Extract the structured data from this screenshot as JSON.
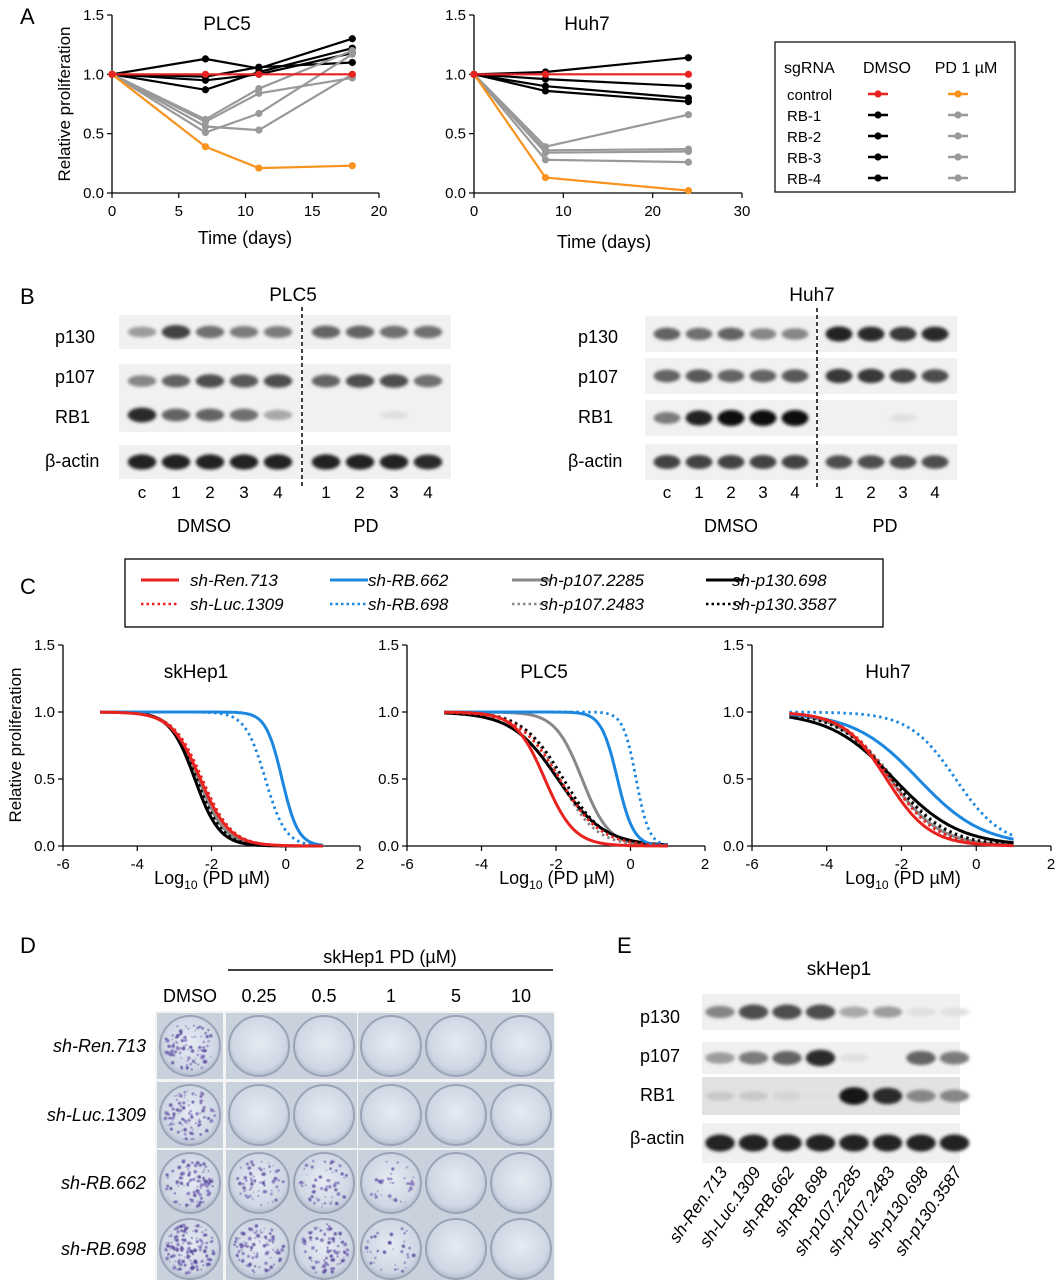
{
  "panel_letters": [
    "A",
    "B",
    "C",
    "D",
    "E"
  ],
  "chart_data": [
    {
      "panel": "A",
      "type": "line",
      "title": "PLC5",
      "xlabel": "Time (days)",
      "ylabel": "Relative proliferation",
      "xlim": [
        0,
        20
      ],
      "ylim": [
        0,
        1.5
      ],
      "xticks": [
        "0",
        "5",
        "10",
        "15",
        "20"
      ],
      "yticks": [
        "0.0",
        "0.5",
        "1.0",
        "1.5"
      ],
      "series": [
        {
          "name": "control DMSO",
          "color": "#e8231f",
          "x": [
            0,
            7,
            11,
            18
          ],
          "y": [
            1.0,
            1.0,
            1.0,
            1.0
          ]
        },
        {
          "name": "control PD 1 µM",
          "color": "#f7931e",
          "x": [
            0,
            7,
            11,
            18
          ],
          "y": [
            1.0,
            0.39,
            0.21,
            0.23
          ]
        },
        {
          "name": "RB-1 DMSO",
          "color": "#000000",
          "x": [
            0,
            7,
            11,
            18
          ],
          "y": [
            1.0,
            1.13,
            1.05,
            1.3
          ]
        },
        {
          "name": "RB-2 DMSO",
          "color": "#000000",
          "x": [
            0,
            7,
            11,
            18
          ],
          "y": [
            1.0,
            0.98,
            1.06,
            1.1
          ]
        },
        {
          "name": "RB-3 DMSO",
          "color": "#000000",
          "x": [
            0,
            7,
            11,
            18
          ],
          "y": [
            1.0,
            0.87,
            1.02,
            1.22
          ]
        },
        {
          "name": "RB-4 DMSO",
          "color": "#000000",
          "x": [
            0,
            7,
            11,
            18
          ],
          "y": [
            1.0,
            0.95,
            1.0,
            1.18
          ]
        },
        {
          "name": "RB-1 PD 1 µM",
          "color": "#999999",
          "x": [
            0,
            7,
            11,
            18
          ],
          "y": [
            1.0,
            0.62,
            0.88,
            1.2
          ]
        },
        {
          "name": "RB-2 PD 1 µM",
          "color": "#999999",
          "x": [
            0,
            7,
            11,
            18
          ],
          "y": [
            1.0,
            0.6,
            0.84,
            0.97
          ]
        },
        {
          "name": "RB-3 PD 1 µM",
          "color": "#999999",
          "x": [
            0,
            7,
            11,
            18
          ],
          "y": [
            1.0,
            0.51,
            0.67,
            1.17
          ]
        },
        {
          "name": "RB-4 PD 1 µM",
          "color": "#999999",
          "x": [
            0,
            7,
            11,
            18
          ],
          "y": [
            1.0,
            0.56,
            0.53,
            1.0
          ]
        }
      ]
    },
    {
      "panel": "A",
      "type": "line",
      "title": "Huh7",
      "xlabel": "Time (days)",
      "ylabel": "",
      "xlim": [
        0,
        30
      ],
      "ylim": [
        0,
        1.5
      ],
      "xticks": [
        "0",
        "10",
        "20",
        "30"
      ],
      "yticks": [
        "0.0",
        "0.5",
        "1.0",
        "1.5"
      ],
      "series": [
        {
          "name": "control DMSO",
          "color": "#e8231f",
          "x": [
            0,
            8,
            24
          ],
          "y": [
            1.0,
            1.0,
            1.0
          ]
        },
        {
          "name": "control PD 1 µM",
          "color": "#f7931e",
          "x": [
            0,
            8,
            24
          ],
          "y": [
            1.0,
            0.13,
            0.02
          ]
        },
        {
          "name": "RB-1 DMSO",
          "color": "#000000",
          "x": [
            0,
            8,
            24
          ],
          "y": [
            1.0,
            1.02,
            1.14
          ]
        },
        {
          "name": "RB-2 DMSO",
          "color": "#000000",
          "x": [
            0,
            8,
            24
          ],
          "y": [
            1.0,
            0.96,
            0.9
          ]
        },
        {
          "name": "RB-3 DMSO",
          "color": "#000000",
          "x": [
            0,
            8,
            24
          ],
          "y": [
            1.0,
            0.9,
            0.8
          ]
        },
        {
          "name": "RB-4 DMSO",
          "color": "#000000",
          "x": [
            0,
            8,
            24
          ],
          "y": [
            1.0,
            0.86,
            0.77
          ]
        },
        {
          "name": "RB-1 PD 1 µM",
          "color": "#999999",
          "x": [
            0,
            8,
            24
          ],
          "y": [
            1.0,
            0.39,
            0.66
          ]
        },
        {
          "name": "RB-2 PD 1 µM",
          "color": "#999999",
          "x": [
            0,
            8,
            24
          ],
          "y": [
            1.0,
            0.36,
            0.37
          ]
        },
        {
          "name": "RB-3 PD 1 µM",
          "color": "#999999",
          "x": [
            0,
            8,
            24
          ],
          "y": [
            1.0,
            0.34,
            0.35
          ]
        },
        {
          "name": "RB-4 PD 1 µM",
          "color": "#999999",
          "x": [
            0,
            8,
            24
          ],
          "y": [
            1.0,
            0.28,
            0.26
          ]
        }
      ]
    },
    {
      "panel": "C",
      "type": "line",
      "title": "skHep1",
      "xlabel_main": "Log",
      "xlabel_sub": "10",
      "xlabel_tail": " (PD µM)",
      "ylabel": "Relative proliferation",
      "xlim": [
        -6,
        2
      ],
      "ylim": [
        0,
        1.5
      ],
      "xticks": [
        "-6",
        "-4",
        "-2",
        "0",
        "2"
      ],
      "yticks": [
        "0.0",
        "0.5",
        "1.0",
        "1.5"
      ],
      "curve_domain": [
        -5,
        1
      ],
      "curve_model": "y = 1 / (1 + 10^(s*(x - ic50)))",
      "series": [
        {
          "name": "sh-Ren.713",
          "color": "#e8231f",
          "dash": false,
          "ic50": -2.3,
          "slope": 1.1
        },
        {
          "name": "sh-Luc.1309",
          "color": "#e8231f",
          "dash": true,
          "ic50": -2.25,
          "slope": 1.1
        },
        {
          "name": "sh-RB.662",
          "color": "#1c87e0",
          "dash": false,
          "ic50": -0.1,
          "slope": 2.0
        },
        {
          "name": "sh-RB.698",
          "color": "#1c87e0",
          "dash": true,
          "ic50": -0.55,
          "slope": 1.6
        },
        {
          "name": "sh-p107.2285",
          "color": "#888888",
          "dash": false,
          "ic50": -2.35,
          "slope": 1.2
        },
        {
          "name": "sh-p107.2483",
          "color": "#888888",
          "dash": true,
          "ic50": -2.4,
          "slope": 1.2
        },
        {
          "name": "sh-p130.698",
          "color": "#000000",
          "dash": false,
          "ic50": -2.45,
          "slope": 1.3
        },
        {
          "name": "sh-p130.3587",
          "color": "#000000",
          "dash": true,
          "ic50": -2.4,
          "slope": 1.25
        }
      ]
    },
    {
      "panel": "C",
      "type": "line",
      "title": "PLC5",
      "xlabel_main": "Log",
      "xlabel_sub": "10",
      "xlabel_tail": " (PD µM)",
      "ylabel": "",
      "xlim": [
        -6,
        2
      ],
      "ylim": [
        0,
        1.5
      ],
      "xticks": [
        "-6",
        "-4",
        "-2",
        "0",
        "2"
      ],
      "yticks": [
        "0.0",
        "0.5",
        "1.0",
        "1.5"
      ],
      "curve_domain": [
        -5,
        1
      ],
      "curve_model": "y = 1 / (1 + 10^(s*(x - ic50)))",
      "series": [
        {
          "name": "sh-Ren.713",
          "color": "#e8231f",
          "dash": false,
          "ic50": -2.3,
          "slope": 1.1
        },
        {
          "name": "sh-Luc.1309",
          "color": "#e8231f",
          "dash": true,
          "ic50": -1.9,
          "slope": 0.8
        },
        {
          "name": "sh-RB.662",
          "color": "#1c87e0",
          "dash": false,
          "ic50": -0.35,
          "slope": 2.0
        },
        {
          "name": "sh-RB.698",
          "color": "#1c87e0",
          "dash": true,
          "ic50": 0.15,
          "slope": 2.5
        },
        {
          "name": "sh-p107.2285",
          "color": "#888888",
          "dash": false,
          "ic50": -1.3,
          "slope": 1.2
        },
        {
          "name": "sh-p107.2483",
          "color": "#888888",
          "dash": true,
          "ic50": -1.9,
          "slope": 0.9
        },
        {
          "name": "sh-p130.698",
          "color": "#000000",
          "dash": false,
          "ic50": -1.95,
          "slope": 0.7
        },
        {
          "name": "sh-p130.3587",
          "color": "#000000",
          "dash": true,
          "ic50": -1.8,
          "slope": 0.8
        }
      ]
    },
    {
      "panel": "C",
      "type": "line",
      "title": "Huh7",
      "xlabel_main": "Log",
      "xlabel_sub": "10",
      "xlabel_tail": " (PD µM)",
      "ylabel": "",
      "xlim": [
        -6,
        2
      ],
      "ylim": [
        0,
        1.5
      ],
      "xticks": [
        "-6",
        "-4",
        "-2",
        "0",
        "2"
      ],
      "yticks": [
        "0.0",
        "0.5",
        "1.0",
        "1.5"
      ],
      "curve_domain": [
        -5,
        1
      ],
      "curve_model": "y = 1 / (1 + 10^(s*(x - ic50)))",
      "series": [
        {
          "name": "sh-Ren.713",
          "color": "#e8231f",
          "dash": false,
          "ic50": -2.4,
          "slope": 0.75
        },
        {
          "name": "sh-Luc.1309",
          "color": "#e8231f",
          "dash": true,
          "ic50": -2.3,
          "slope": 0.7
        },
        {
          "name": "sh-RB.662",
          "color": "#1c87e0",
          "dash": false,
          "ic50": -1.55,
          "slope": 0.5
        },
        {
          "name": "sh-RB.698",
          "color": "#1c87e0",
          "dash": true,
          "ic50": -0.55,
          "slope": 0.7
        },
        {
          "name": "sh-p107.2285",
          "color": "#888888",
          "dash": false,
          "ic50": -2.3,
          "slope": 0.65
        },
        {
          "name": "sh-p107.2483",
          "color": "#888888",
          "dash": true,
          "ic50": -2.2,
          "slope": 0.6
        },
        {
          "name": "sh-p130.698",
          "color": "#000000",
          "dash": false,
          "ic50": -2.2,
          "slope": 0.5
        },
        {
          "name": "sh-p130.3587",
          "color": "#000000",
          "dash": true,
          "ic50": -2.25,
          "slope": 0.6
        }
      ]
    }
  ],
  "legend_a": {
    "header_sgrna": "sgRNA",
    "header_dmso": "DMSO",
    "header_pd": "PD 1 µM",
    "rows": [
      {
        "label": "control",
        "dmso_color": "#e8231f",
        "pd_color": "#f7931e"
      },
      {
        "label": "RB-1",
        "dmso_color": "#000000",
        "pd_color": "#999999"
      },
      {
        "label": "RB-2",
        "dmso_color": "#000000",
        "pd_color": "#999999"
      },
      {
        "label": "RB-3",
        "dmso_color": "#000000",
        "pd_color": "#999999"
      },
      {
        "label": "RB-4",
        "dmso_color": "#000000",
        "pd_color": "#999999"
      }
    ]
  },
  "blots_b": [
    {
      "title": "PLC5",
      "proteins": [
        "p130",
        "p107",
        "RB1",
        "β-actin"
      ],
      "lane_labels": [
        "c",
        "1",
        "2",
        "3",
        "4",
        "1",
        "2",
        "3",
        "4"
      ],
      "group_labels": [
        "DMSO",
        "PD"
      ],
      "intensities": [
        [
          0.35,
          0.75,
          0.55,
          0.5,
          0.5,
          0.6,
          0.6,
          0.55,
          0.55
        ],
        [
          0.45,
          0.6,
          0.7,
          0.65,
          0.7,
          0.6,
          0.7,
          0.7,
          0.55
        ],
        [
          0.85,
          0.6,
          0.6,
          0.55,
          0.3,
          0.0,
          0.0,
          0.05,
          0.0
        ],
        [
          0.9,
          0.9,
          0.9,
          0.9,
          0.9,
          0.9,
          0.9,
          0.9,
          0.85
        ]
      ]
    },
    {
      "title": "Huh7",
      "proteins": [
        "p130",
        "p107",
        "RB1",
        "β-actin"
      ],
      "lane_labels": [
        "c",
        "1",
        "2",
        "3",
        "4",
        "1",
        "2",
        "3",
        "4"
      ],
      "group_labels": [
        "DMSO",
        "PD"
      ],
      "intensities": [
        [
          0.6,
          0.55,
          0.6,
          0.45,
          0.45,
          0.9,
          0.85,
          0.8,
          0.85
        ],
        [
          0.6,
          0.65,
          0.6,
          0.6,
          0.65,
          0.8,
          0.8,
          0.75,
          0.7
        ],
        [
          0.5,
          0.9,
          1.0,
          1.0,
          1.0,
          0.0,
          0.0,
          0.05,
          0.0
        ],
        [
          0.75,
          0.75,
          0.75,
          0.75,
          0.75,
          0.7,
          0.7,
          0.7,
          0.7
        ]
      ]
    }
  ],
  "panel_d": {
    "header": "skHep1 PD (µM)",
    "columns": [
      "DMSO",
      "0.25",
      "0.5",
      "1",
      "5",
      "10"
    ],
    "rows": [
      "sh-Ren.713",
      "sh-Luc.1309",
      "sh-RB.662",
      "sh-RB.698"
    ],
    "colony_density": [
      [
        0.6,
        0.0,
        0.0,
        0.0,
        0.0,
        0.0
      ],
      [
        0.55,
        0.0,
        0.0,
        0.0,
        0.0,
        0.0
      ],
      [
        0.6,
        0.4,
        0.35,
        0.2,
        0.0,
        0.0
      ],
      [
        0.85,
        0.55,
        0.5,
        0.2,
        0.0,
        0.0
      ]
    ]
  },
  "panel_e": {
    "title": "skHep1",
    "proteins": [
      "p130",
      "p107",
      "RB1",
      "β-actin"
    ],
    "lane_labels": [
      "sh-Ren.713",
      "sh-Luc.1309",
      "sh-RB.662",
      "sh-RB.698",
      "sh-p107.2285",
      "sh-p107.2483",
      "sh-p130.698",
      "sh-p130.3587"
    ],
    "intensities": [
      [
        0.45,
        0.7,
        0.7,
        0.7,
        0.3,
        0.35,
        0.05,
        0.05
      ],
      [
        0.35,
        0.5,
        0.6,
        0.85,
        0.05,
        0.0,
        0.6,
        0.5
      ],
      [
        0.15,
        0.15,
        0.1,
        0.05,
        0.95,
        0.85,
        0.45,
        0.45
      ],
      [
        0.9,
        0.9,
        0.9,
        0.9,
        0.9,
        0.9,
        0.9,
        0.9
      ]
    ]
  }
}
